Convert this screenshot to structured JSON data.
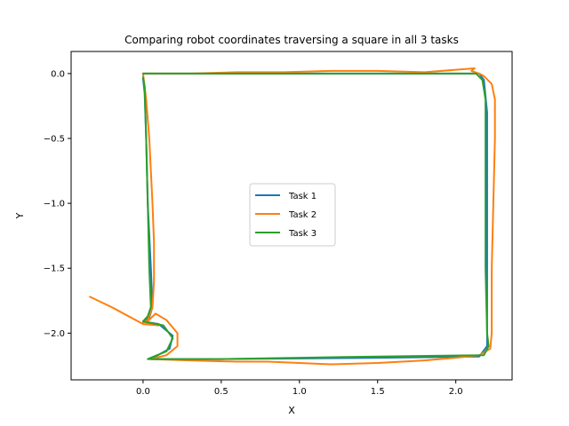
{
  "chart_data": {
    "type": "line",
    "title": "Comparing robot coordinates traversing a square in all 3 tasks",
    "xlabel": "X",
    "ylabel": "Y",
    "xlim": [
      -0.46,
      2.36
    ],
    "ylim": [
      -2.36,
      0.17
    ],
    "xticks": [
      0.0,
      0.5,
      1.0,
      1.5,
      2.0
    ],
    "xtick_labels": [
      "0.0",
      "0.5",
      "1.0",
      "1.5",
      "2.0"
    ],
    "yticks": [
      0.0,
      -0.5,
      -1.0,
      -1.5,
      -2.0
    ],
    "ytick_labels": [
      "0.0",
      "−0.5",
      "−1.0",
      "−1.5",
      "−2.0"
    ],
    "grid": false,
    "legend_position": "center",
    "series": [
      {
        "name": "Task 1",
        "color": "#1f77b4",
        "points": [
          [
            0.0,
            0.0
          ],
          [
            0.5,
            0.0
          ],
          [
            1.0,
            0.0
          ],
          [
            1.5,
            0.0
          ],
          [
            2.0,
            0.0
          ],
          [
            2.15,
            0.0
          ],
          [
            2.18,
            -0.05
          ],
          [
            2.2,
            -0.3
          ],
          [
            2.2,
            -1.0
          ],
          [
            2.2,
            -1.5
          ],
          [
            2.2,
            -2.0
          ],
          [
            2.2,
            -2.1
          ],
          [
            2.15,
            -2.18
          ],
          [
            1.5,
            -2.19
          ],
          [
            1.0,
            -2.195
          ],
          [
            0.5,
            -2.2
          ],
          [
            0.05,
            -2.2
          ],
          [
            0.17,
            -2.12
          ],
          [
            0.19,
            -2.02
          ],
          [
            0.1,
            -1.93
          ],
          [
            0.0,
            -1.91
          ],
          [
            0.04,
            -1.88
          ],
          [
            0.06,
            -1.8
          ],
          [
            0.05,
            -1.5
          ],
          [
            0.03,
            -1.0
          ],
          [
            0.02,
            -0.5
          ],
          [
            0.01,
            -0.15
          ],
          [
            0.0,
            -0.04
          ]
        ]
      },
      {
        "name": "Task 2",
        "color": "#ff7f0e",
        "points": [
          [
            -0.34,
            -1.72
          ],
          [
            -0.2,
            -1.8
          ],
          [
            0.0,
            -1.93
          ],
          [
            0.1,
            -1.94
          ],
          [
            0.02,
            -1.92
          ],
          [
            0.08,
            -1.85
          ],
          [
            0.15,
            -1.9
          ],
          [
            0.22,
            -2.0
          ],
          [
            0.22,
            -2.1
          ],
          [
            0.15,
            -2.17
          ],
          [
            0.05,
            -2.2
          ],
          [
            0.3,
            -2.21
          ],
          [
            0.6,
            -2.22
          ],
          [
            0.8,
            -2.22
          ],
          [
            1.0,
            -2.23
          ],
          [
            1.2,
            -2.24
          ],
          [
            1.5,
            -2.23
          ],
          [
            1.8,
            -2.21
          ],
          [
            2.0,
            -2.19
          ],
          [
            2.15,
            -2.17
          ],
          [
            2.22,
            -2.12
          ],
          [
            2.23,
            -2.0
          ],
          [
            2.23,
            -1.5
          ],
          [
            2.24,
            -1.0
          ],
          [
            2.25,
            -0.5
          ],
          [
            2.25,
            -0.2
          ],
          [
            2.23,
            -0.08
          ],
          [
            2.18,
            -0.02
          ],
          [
            2.15,
            0.0
          ],
          [
            2.1,
            0.02
          ],
          [
            2.12,
            0.04
          ],
          [
            1.8,
            0.01
          ],
          [
            1.5,
            0.02
          ],
          [
            1.2,
            0.02
          ],
          [
            0.9,
            0.01
          ],
          [
            0.6,
            0.01
          ],
          [
            0.3,
            0.0
          ],
          [
            0.0,
            0.0
          ],
          [
            0.02,
            -0.2
          ],
          [
            0.04,
            -0.5
          ],
          [
            0.06,
            -1.0
          ],
          [
            0.07,
            -1.3
          ],
          [
            0.07,
            -1.6
          ],
          [
            0.06,
            -1.8
          ],
          [
            0.03,
            -1.9
          ],
          [
            0.0,
            -1.92
          ]
        ]
      },
      {
        "name": "Task 3",
        "color": "#2ca02c",
        "points": [
          [
            0.0,
            0.0
          ],
          [
            0.5,
            0.0
          ],
          [
            1.0,
            0.0
          ],
          [
            1.5,
            0.0
          ],
          [
            2.0,
            0.0
          ],
          [
            2.13,
            0.0
          ],
          [
            2.17,
            -0.05
          ],
          [
            2.19,
            -0.2
          ],
          [
            2.19,
            -1.0
          ],
          [
            2.19,
            -1.5
          ],
          [
            2.2,
            -2.0
          ],
          [
            2.21,
            -2.1
          ],
          [
            2.18,
            -2.17
          ],
          [
            1.5,
            -2.18
          ],
          [
            1.0,
            -2.19
          ],
          [
            0.5,
            -2.2
          ],
          [
            0.03,
            -2.2
          ],
          [
            0.15,
            -2.14
          ],
          [
            0.19,
            -2.04
          ],
          [
            0.13,
            -1.94
          ],
          [
            0.0,
            -1.91
          ],
          [
            0.03,
            -1.87
          ],
          [
            0.05,
            -1.8
          ],
          [
            0.04,
            -1.5
          ],
          [
            0.03,
            -1.0
          ],
          [
            0.02,
            -0.5
          ],
          [
            0.01,
            -0.1
          ],
          [
            0.0,
            -0.03
          ]
        ]
      }
    ]
  }
}
